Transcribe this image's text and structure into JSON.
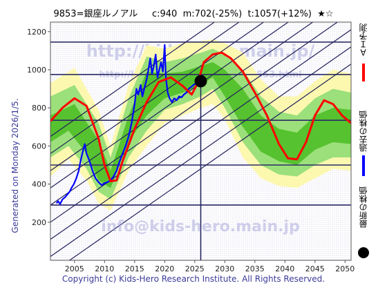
{
  "header": {
    "title": "9853=銀座ルノアル     c:940  m:702(-25%)  t:1057(+12%)  ★☆"
  },
  "side_text": "Generated on Monday 2026/1/5.",
  "footer": "Copyright (c) Kids-Hero Research Institute. All Rights Reserved.",
  "watermarks": {
    "url": "http://kids-hero.main.jp/",
    "url_small": "http://kids-hero.main.jp/code/9853.html",
    "email": "info@kids-hero.main.jp"
  },
  "legend": [
    {
      "label": "ＡＩ予測",
      "color": "#ff0000",
      "marker": "line"
    },
    {
      "label": "過去の株価",
      "color": "#0000ff",
      "marker": "line"
    },
    {
      "label": "最新の株価",
      "color": "#000000",
      "marker": "dot"
    }
  ],
  "colors": {
    "ai": "#ff0000",
    "price": "#0000ff",
    "band_outer": "#fdf8b0",
    "band_mid": "#9be07a",
    "band_inner": "#57c22f",
    "guide": "#1f1f5a",
    "hline": "#2a2a66"
  },
  "chart_data": {
    "type": "line",
    "xlim": [
      2001,
      2051
    ],
    "ylim": [
      0,
      1250
    ],
    "x_ticks": [
      2005,
      2010,
      2015,
      2020,
      2025,
      2030,
      2035,
      2040,
      2045,
      2050
    ],
    "y_ticks": [
      200,
      400,
      600,
      800,
      1000,
      1200
    ],
    "hlines": [
      290,
      500,
      735,
      975,
      1145
    ],
    "vline": 2026.0,
    "latest_point": {
      "x": 2026.0,
      "y": 940
    },
    "ai_forecast": [
      [
        2001,
        730
      ],
      [
        2003,
        800
      ],
      [
        2005,
        850
      ],
      [
        2007,
        810
      ],
      [
        2009,
        640
      ],
      [
        2010,
        500
      ],
      [
        2011,
        415
      ],
      [
        2012,
        420
      ],
      [
        2013,
        520
      ],
      [
        2015,
        690
      ],
      [
        2017,
        830
      ],
      [
        2019,
        935
      ],
      [
        2021,
        960
      ],
      [
        2023,
        915
      ],
      [
        2024.5,
        870
      ],
      [
        2025.5,
        930
      ],
      [
        2026.5,
        1040
      ],
      [
        2028,
        1080
      ],
      [
        2029.5,
        1090
      ],
      [
        2031,
        1060
      ],
      [
        2033,
        990
      ],
      [
        2035,
        880
      ],
      [
        2037,
        760
      ],
      [
        2039,
        610
      ],
      [
        2040.5,
        535
      ],
      [
        2042,
        530
      ],
      [
        2043.5,
        620
      ],
      [
        2045,
        760
      ],
      [
        2046.5,
        840
      ],
      [
        2048,
        820
      ],
      [
        2049.5,
        760
      ],
      [
        2051,
        720
      ]
    ],
    "band_outer_upper": [
      [
        2001,
        930
      ],
      [
        2005,
        1010
      ],
      [
        2009,
        790
      ],
      [
        2011,
        600
      ],
      [
        2014,
        920
      ],
      [
        2017,
        1130
      ],
      [
        2020,
        1110
      ],
      [
        2023,
        1140
      ],
      [
        2026,
        1150
      ],
      [
        2028,
        1160
      ],
      [
        2030,
        1140
      ],
      [
        2033,
        1090
      ],
      [
        2036,
        950
      ],
      [
        2039,
        860
      ],
      [
        2042,
        860
      ],
      [
        2045,
        940
      ],
      [
        2048,
        1000
      ],
      [
        2051,
        980
      ]
    ],
    "band_outer_lower": [
      [
        2001,
        440
      ],
      [
        2004,
        530
      ],
      [
        2007,
        420
      ],
      [
        2009,
        300
      ],
      [
        2011,
        260
      ],
      [
        2014,
        470
      ],
      [
        2017,
        600
      ],
      [
        2020,
        720
      ],
      [
        2023,
        760
      ],
      [
        2026,
        800
      ],
      [
        2028,
        820
      ],
      [
        2030,
        740
      ],
      [
        2033,
        540
      ],
      [
        2036,
        430
      ],
      [
        2039,
        390
      ],
      [
        2042,
        380
      ],
      [
        2045,
        430
      ],
      [
        2048,
        480
      ],
      [
        2051,
        470
      ]
    ],
    "band_mid_upper": [
      [
        2001,
        860
      ],
      [
        2005,
        920
      ],
      [
        2009,
        720
      ],
      [
        2011,
        540
      ],
      [
        2014,
        850
      ],
      [
        2017,
        1070
      ],
      [
        2020,
        1040
      ],
      [
        2023,
        1060
      ],
      [
        2026,
        1090
      ],
      [
        2028,
        1110
      ],
      [
        2030,
        1080
      ],
      [
        2033,
        1000
      ],
      [
        2036,
        860
      ],
      [
        2039,
        780
      ],
      [
        2042,
        760
      ],
      [
        2045,
        850
      ],
      [
        2048,
        900
      ],
      [
        2051,
        880
      ]
    ],
    "band_mid_lower": [
      [
        2001,
        540
      ],
      [
        2004,
        600
      ],
      [
        2007,
        480
      ],
      [
        2009,
        360
      ],
      [
        2011,
        320
      ],
      [
        2014,
        540
      ],
      [
        2017,
        680
      ],
      [
        2020,
        790
      ],
      [
        2023,
        820
      ],
      [
        2026,
        860
      ],
      [
        2028,
        900
      ],
      [
        2030,
        800
      ],
      [
        2033,
        620
      ],
      [
        2036,
        500
      ],
      [
        2039,
        450
      ],
      [
        2042,
        440
      ],
      [
        2045,
        500
      ],
      [
        2048,
        540
      ],
      [
        2051,
        540
      ]
    ],
    "band_inner_upper": [
      [
        2001,
        760
      ],
      [
        2005,
        820
      ],
      [
        2009,
        630
      ],
      [
        2011,
        470
      ],
      [
        2014,
        760
      ],
      [
        2017,
        990
      ],
      [
        2020,
        980
      ],
      [
        2023,
        990
      ],
      [
        2026,
        1020
      ],
      [
        2028,
        1040
      ],
      [
        2030,
        1000
      ],
      [
        2033,
        900
      ],
      [
        2036,
        760
      ],
      [
        2039,
        690
      ],
      [
        2042,
        670
      ],
      [
        2045,
        760
      ],
      [
        2048,
        800
      ],
      [
        2051,
        790
      ]
    ],
    "band_inner_lower": [
      [
        2001,
        620
      ],
      [
        2004,
        680
      ],
      [
        2007,
        560
      ],
      [
        2009,
        420
      ],
      [
        2011,
        380
      ],
      [
        2014,
        620
      ],
      [
        2017,
        760
      ],
      [
        2020,
        850
      ],
      [
        2023,
        880
      ],
      [
        2026,
        920
      ],
      [
        2028,
        960
      ],
      [
        2030,
        860
      ],
      [
        2033,
        700
      ],
      [
        2036,
        570
      ],
      [
        2039,
        520
      ],
      [
        2042,
        500
      ],
      [
        2045,
        580
      ],
      [
        2048,
        620
      ],
      [
        2051,
        610
      ]
    ],
    "past_price": [
      [
        2002.0,
        300
      ],
      [
        2002.3,
        310
      ],
      [
        2002.6,
        295
      ],
      [
        2003.0,
        320
      ],
      [
        2003.4,
        330
      ],
      [
        2003.8,
        345
      ],
      [
        2004.2,
        360
      ],
      [
        2004.5,
        380
      ],
      [
        2004.9,
        400
      ],
      [
        2005.3,
        430
      ],
      [
        2005.7,
        470
      ],
      [
        2006.0,
        520
      ],
      [
        2006.3,
        560
      ],
      [
        2006.7,
        610
      ],
      [
        2007.0,
        560
      ],
      [
        2007.5,
        520
      ],
      [
        2008.0,
        470
      ],
      [
        2008.5,
        430
      ],
      [
        2009.0,
        410
      ],
      [
        2009.5,
        395
      ],
      [
        2010.0,
        405
      ],
      [
        2010.5,
        410
      ],
      [
        2011.0,
        420
      ],
      [
        2011.5,
        440
      ],
      [
        2012.0,
        470
      ],
      [
        2012.5,
        520
      ],
      [
        2013.0,
        560
      ],
      [
        2013.5,
        600
      ],
      [
        2014.0,
        650
      ],
      [
        2014.5,
        720
      ],
      [
        2015.0,
        820
      ],
      [
        2015.3,
        900
      ],
      [
        2015.6,
        870
      ],
      [
        2016.0,
        920
      ],
      [
        2016.3,
        860
      ],
      [
        2016.6,
        900
      ],
      [
        2017.0,
        950
      ],
      [
        2017.3,
        1000
      ],
      [
        2017.6,
        1060
      ],
      [
        2017.9,
        980
      ],
      [
        2018.2,
        1020
      ],
      [
        2018.5,
        1080
      ],
      [
        2018.8,
        960
      ],
      [
        2019.1,
        1000
      ],
      [
        2019.4,
        1040
      ],
      [
        2019.7,
        990
      ],
      [
        2020.0,
        1130
      ],
      [
        2020.2,
        960
      ],
      [
        2020.5,
        880
      ],
      [
        2020.8,
        850
      ],
      [
        2021.2,
        830
      ],
      [
        2021.6,
        850
      ],
      [
        2022.0,
        840
      ],
      [
        2022.4,
        860
      ],
      [
        2022.8,
        855
      ],
      [
        2023.2,
        870
      ],
      [
        2023.6,
        880
      ],
      [
        2024.0,
        900
      ],
      [
        2024.4,
        910
      ],
      [
        2024.8,
        920
      ],
      [
        2025.2,
        930
      ],
      [
        2025.6,
        935
      ],
      [
        2026.0,
        940
      ]
    ],
    "guide_lines": [
      {
        "slope": 22,
        "intercept": 650
      },
      {
        "slope": 22,
        "intercept": 560
      },
      {
        "slope": 22,
        "intercept": 470
      },
      {
        "slope": 22,
        "intercept": 380
      },
      {
        "slope": 22,
        "intercept": 290
      },
      {
        "slope": 22,
        "intercept": 200
      },
      {
        "slope": 22,
        "intercept": 110
      },
      {
        "slope": 22,
        "intercept": 20
      },
      {
        "slope": 22,
        "intercept": -70
      }
    ]
  }
}
